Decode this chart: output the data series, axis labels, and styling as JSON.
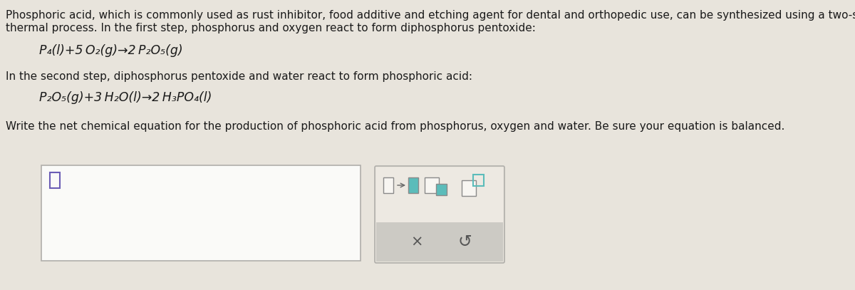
{
  "background_color": "#e8e4dc",
  "text_color": "#2a2a2a",
  "title_line1": "Phosphoric acid, which is commonly used as rust inhibitor, food additive and etching agent for dental and orthopedic use, can be synthesized using a two-step",
  "title_line2": "thermal process. In the first step, phosphorus and oxygen react to form diphosphorus pentoxide:",
  "eq1": "P₄(l)+5 O₂(g)→2 P₂O₅(g)",
  "middle_text": "In the second step, diphosphorus pentoxide and water react to form phosphoric acid:",
  "eq2": "P₂O₅(g)+3 H₂O(l)→2 H₃PO₄(l)",
  "question_text": "Write the net chemical equation for the production of phosphoric acid from phosphorus, oxygen and water. Be sure your equation is balanced.",
  "body_fontsize": 11.0,
  "eq_fontsize": 12.5,
  "text_color_dark": "#1a1a1a",
  "cursor_color": "#6b5db5",
  "teal_color": "#5bbcba",
  "toolbar_top_bg": "#ede9e2",
  "toolbar_bottom_bg": "#cccac4",
  "toolbar_border": "#b0aeaa",
  "input_border": "#b0aeaa",
  "input_bg": "#fafaf8",
  "icon_border": "#8a8a8a",
  "icon_bg": "#f8f6f2"
}
